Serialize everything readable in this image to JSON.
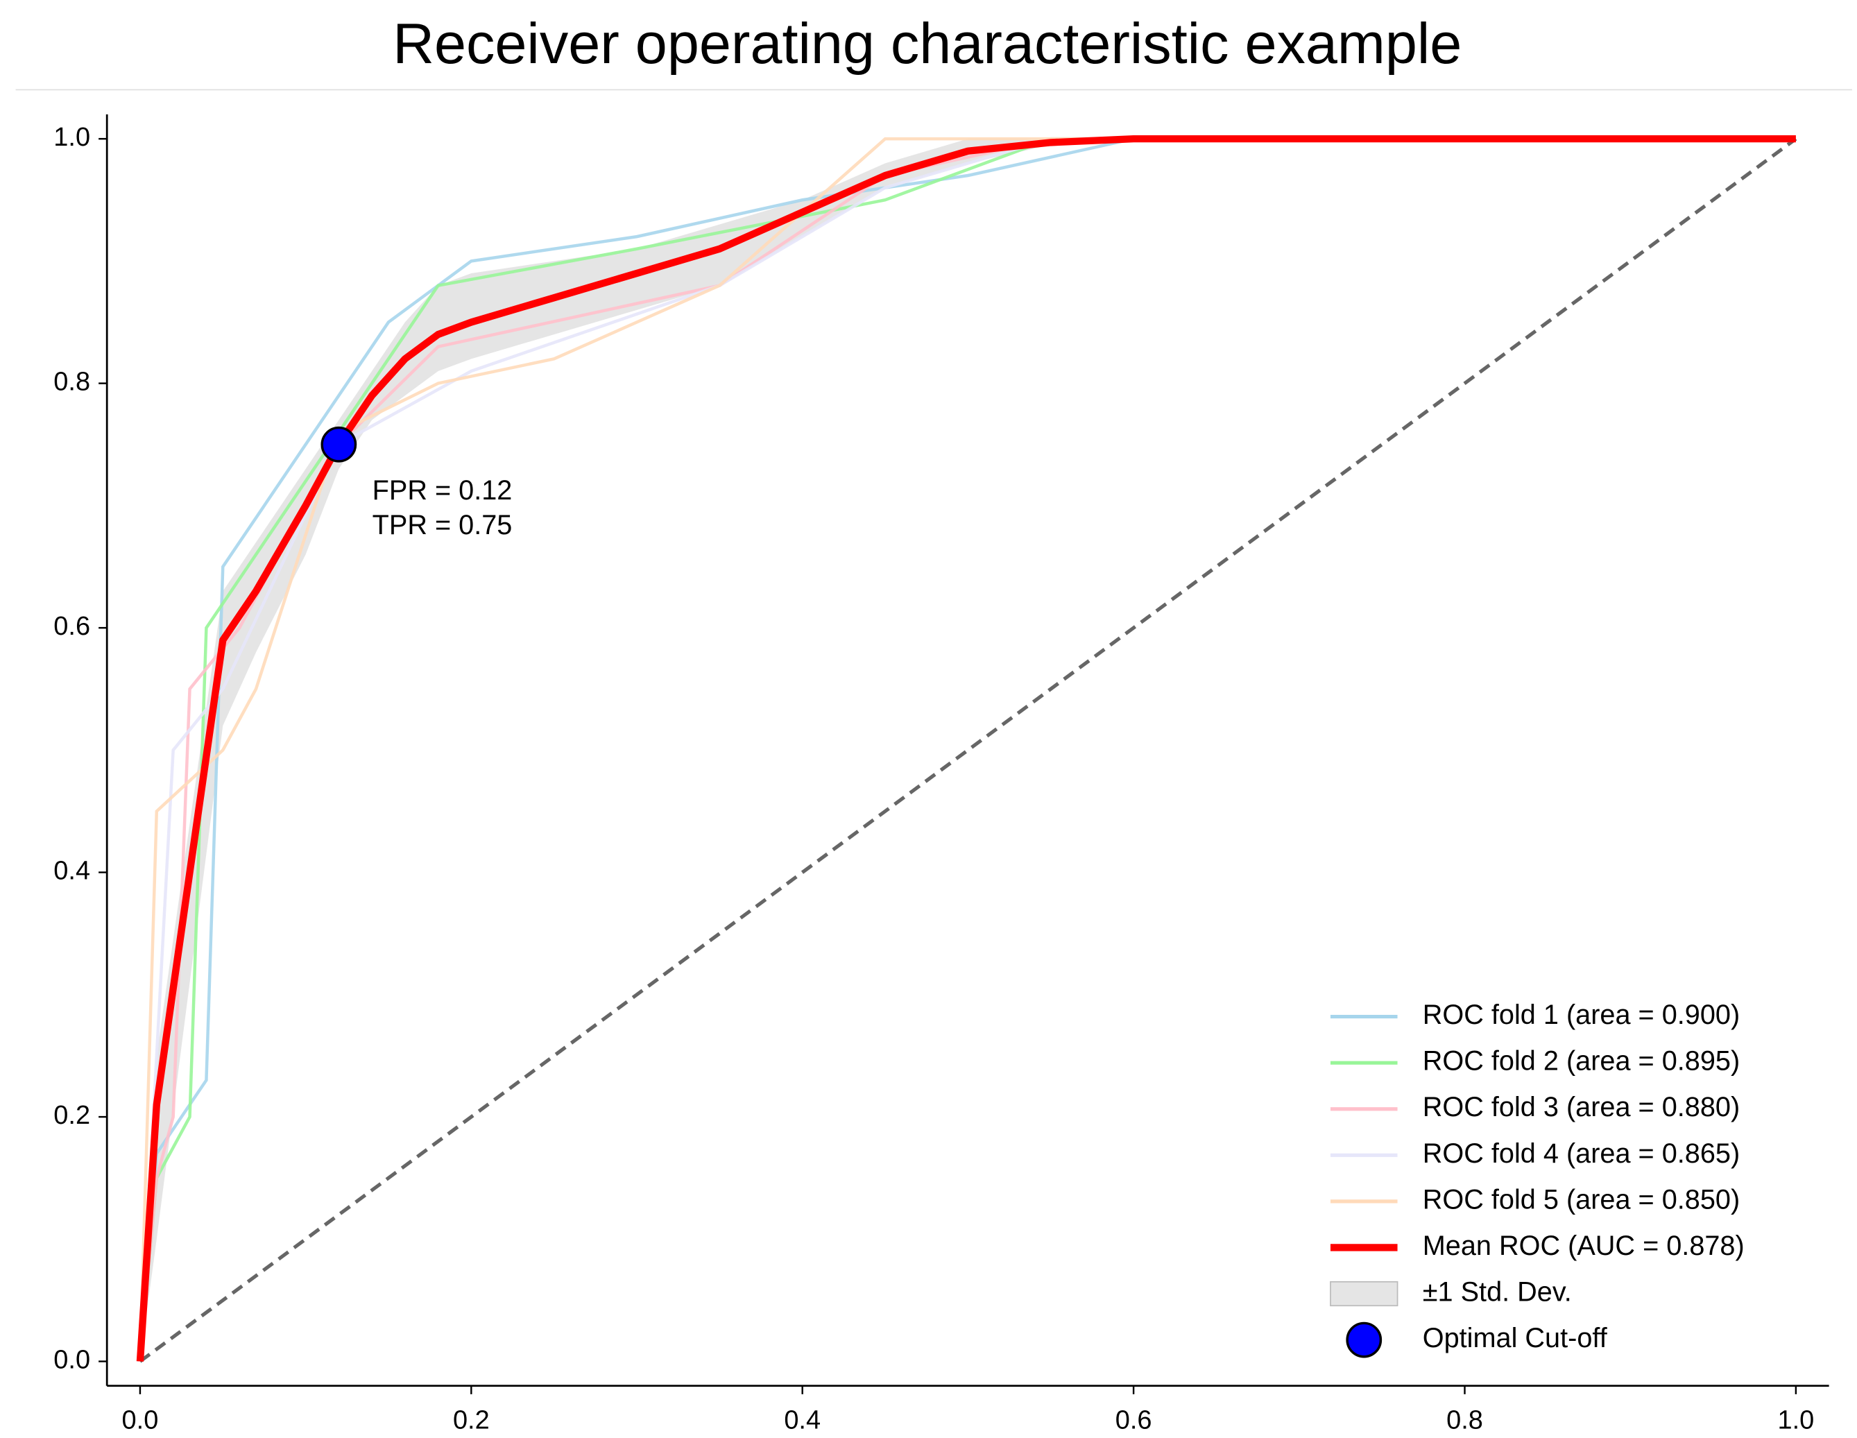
{
  "chart_data": {
    "type": "line",
    "title": "Receiver operating characteristic example",
    "xlim": [
      -0.02,
      1.02
    ],
    "ylim": [
      -0.02,
      1.02
    ],
    "xticks": [
      {
        "value": 0,
        "label": "0.0"
      },
      {
        "value": 0.2,
        "label": "0.2"
      },
      {
        "value": 0.4,
        "label": "0.4"
      },
      {
        "value": 0.6,
        "label": "0.6"
      },
      {
        "value": 0.8,
        "label": "0.8"
      },
      {
        "value": 1,
        "label": "1.0"
      }
    ],
    "yticks": [
      {
        "value": 0,
        "label": "0.0"
      },
      {
        "value": 0.2,
        "label": "0.2"
      },
      {
        "value": 0.4,
        "label": "0.4"
      },
      {
        "value": 0.6,
        "label": "0.6"
      },
      {
        "value": 0.8,
        "label": "0.8"
      },
      {
        "value": 1,
        "label": "1.0"
      }
    ],
    "legend": "lower right",
    "series": [
      {
        "type": "line",
        "name": "ROC fold 1 (area = 0.900)",
        "color": "#a6d5ec",
        "x": [
          0,
          0.01,
          0.04,
          0.05,
          0.15,
          0.2,
          0.3,
          0.4,
          0.5,
          0.6,
          1
        ],
        "values": [
          0,
          0.17,
          0.23,
          0.65,
          0.85,
          0.9,
          0.92,
          0.95,
          0.97,
          1,
          1
        ]
      },
      {
        "type": "line",
        "name": "ROC fold 2 (area = 0.895)",
        "color": "#98f598",
        "x": [
          0,
          0.01,
          0.03,
          0.04,
          0.12,
          0.18,
          0.3,
          0.45,
          0.55,
          1
        ],
        "values": [
          0,
          0.15,
          0.2,
          0.6,
          0.76,
          0.88,
          0.91,
          0.95,
          1,
          1
        ]
      },
      {
        "type": "line",
        "name": "ROC fold 3 (area = 0.880)",
        "color": "#ffc0cb",
        "x": [
          0,
          0.01,
          0.02,
          0.03,
          0.06,
          0.12,
          0.18,
          0.35,
          0.45,
          0.55,
          1
        ],
        "values": [
          0,
          0.15,
          0.2,
          0.55,
          0.6,
          0.75,
          0.83,
          0.88,
          0.97,
          1,
          1
        ]
      },
      {
        "type": "line",
        "name": "ROC fold 4 (area = 0.865)",
        "color": "#e6e6fa",
        "x": [
          0,
          0.02,
          0.05,
          0.12,
          0.2,
          0.35,
          0.45,
          0.55,
          1
        ],
        "values": [
          0,
          0.5,
          0.55,
          0.75,
          0.81,
          0.88,
          0.96,
          1,
          1
        ]
      },
      {
        "type": "line",
        "name": "ROC fold 5 (area = 0.850)",
        "color": "#ffdab9",
        "x": [
          0,
          0.01,
          0.05,
          0.07,
          0.12,
          0.18,
          0.25,
          0.35,
          0.45,
          1
        ],
        "values": [
          0,
          0.45,
          0.5,
          0.55,
          0.76,
          0.8,
          0.82,
          0.88,
          1,
          1
        ]
      },
      {
        "type": "mean",
        "name": "Mean ROC (AUC = 0.878)",
        "color": "#ff0000",
        "x": [
          0,
          0.01,
          0.05,
          0.07,
          0.1,
          0.12,
          0.14,
          0.16,
          0.18,
          0.2,
          0.25,
          0.3,
          0.35,
          0.4,
          0.45,
          0.5,
          0.55,
          0.6,
          1
        ],
        "values": [
          0,
          0.21,
          0.59,
          0.63,
          0.7,
          0.75,
          0.79,
          0.82,
          0.84,
          0.85,
          0.87,
          0.89,
          0.91,
          0.94,
          0.97,
          0.99,
          0.997,
          1,
          1
        ]
      },
      {
        "type": "band",
        "name": "±1 Std. Dev.",
        "color": "#d3d3d3",
        "x": [
          0,
          0.01,
          0.05,
          0.07,
          0.1,
          0.12,
          0.14,
          0.16,
          0.18,
          0.2,
          0.25,
          0.3,
          0.35,
          0.4,
          0.45,
          0.5,
          0.55,
          0.6,
          1
        ],
        "upper": [
          0,
          0.25,
          0.63,
          0.67,
          0.73,
          0.77,
          0.81,
          0.85,
          0.88,
          0.89,
          0.9,
          0.91,
          0.93,
          0.95,
          0.98,
          1,
          1,
          1,
          1
        ],
        "lower": [
          0,
          0.1,
          0.52,
          0.58,
          0.66,
          0.73,
          0.77,
          0.79,
          0.81,
          0.82,
          0.84,
          0.86,
          0.88,
          0.92,
          0.96,
          0.98,
          0.995,
          1,
          1
        ]
      },
      {
        "type": "point",
        "name": "Optimal Cut-off",
        "color": "#0000ff",
        "x": 0.12,
        "y": 0.75,
        "annotation": [
          "FPR = 0.12",
          "TPR = 0.75"
        ]
      },
      {
        "type": "diagonal",
        "color": "#666666",
        "x": [
          0,
          1
        ],
        "values": [
          0,
          1
        ]
      }
    ]
  }
}
